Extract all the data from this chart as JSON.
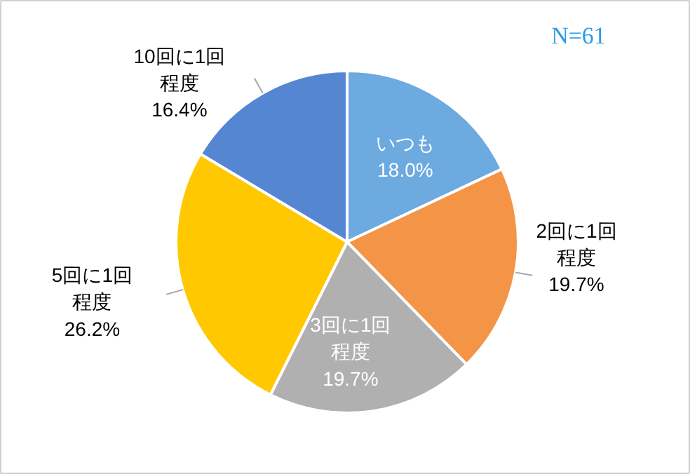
{
  "chart_data": {
    "type": "pie",
    "categories": [
      "いつも",
      "2回に1回程度",
      "3回に1回程度",
      "5回に1回程度",
      "10回に1回程度"
    ],
    "values": [
      18.0,
      19.7,
      19.7,
      26.2,
      16.4
    ],
    "colors": [
      "#6CAAE0",
      "#F39447",
      "#B0B0B0",
      "#FFC800",
      "#5486D2"
    ],
    "value_labels": [
      "18.0%",
      "19.7%",
      "19.7%",
      "26.2%",
      "16.4%"
    ],
    "annotations": [
      "N=61"
    ]
  }
}
